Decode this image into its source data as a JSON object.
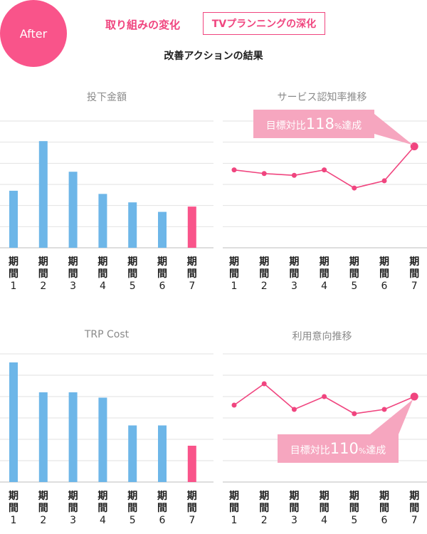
{
  "header": {
    "badge": "After",
    "title": "取り組みの変化",
    "boxed_label": "TVプランニングの深化",
    "subtitle": "改善アクションの結果"
  },
  "colors": {
    "accent": "#f0457f",
    "bar": "#6db6e8",
    "bar_highlight": "#f9548a",
    "grid": "#e2e2e2",
    "callout": "#f6a6bf"
  },
  "chart_data": [
    {
      "type": "bar",
      "title": "投下金額",
      "categories": [
        "期間1",
        "期間2",
        "期間3",
        "期間4",
        "期間5",
        "期間6",
        "期間7"
      ],
      "tick_top": "期間",
      "tick_bottom": [
        "1",
        "2",
        "3",
        "4",
        "5",
        "6",
        "7"
      ],
      "values": [
        54,
        101,
        72,
        51,
        43,
        34,
        39
      ],
      "highlight_index": 6,
      "ylim": [
        0,
        120
      ],
      "grid": true
    },
    {
      "type": "line",
      "title": "サービス認知率推移",
      "categories": [
        "期間1",
        "期間2",
        "期間3",
        "期間4",
        "期間5",
        "期間6",
        "期間7"
      ],
      "tick_top": "期間",
      "tick_bottom": [
        "1",
        "2",
        "3",
        "4",
        "5",
        "6",
        "7"
      ],
      "values": [
        83,
        81,
        80,
        83,
        73,
        77,
        96
      ],
      "ylim": [
        40,
        110
      ],
      "grid": true,
      "annotation": {
        "prefix": "目標対比",
        "value": "118",
        "unit": "%",
        "suffix": "達成",
        "target_index": 6,
        "placement": "above-left"
      }
    },
    {
      "type": "bar",
      "title": "TRP Cost",
      "categories": [
        "期間1",
        "期間2",
        "期間3",
        "期間4",
        "期間5",
        "期間6",
        "期間7"
      ],
      "tick_top": "期間",
      "tick_bottom": [
        "1",
        "2",
        "3",
        "4",
        "5",
        "6",
        "7"
      ],
      "values": [
        112,
        84,
        84,
        79,
        53,
        53,
        34
      ],
      "highlight_index": 6,
      "ylim": [
        0,
        120
      ],
      "grid": true
    },
    {
      "type": "line",
      "title": "利用意向推移",
      "categories": [
        "期間1",
        "期間2",
        "期間3",
        "期間4",
        "期間5",
        "期間6",
        "期間7"
      ],
      "tick_top": "期間",
      "tick_bottom": [
        "1",
        "2",
        "3",
        "4",
        "5",
        "6",
        "7"
      ],
      "values": [
        76,
        86,
        74,
        80,
        72,
        74,
        80
      ],
      "ylim": [
        40,
        100
      ],
      "grid": true,
      "annotation": {
        "prefix": "目標対比",
        "value": "110",
        "unit": "%",
        "suffix": "達成",
        "target_index": 6,
        "placement": "below-left"
      }
    }
  ]
}
